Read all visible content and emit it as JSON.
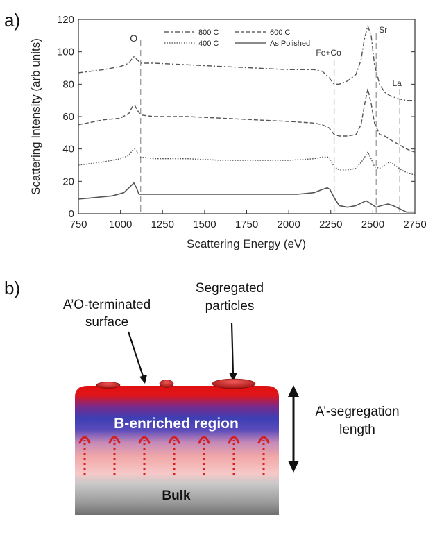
{
  "panel_a_label": "a)",
  "panel_b_label": "b)",
  "chart_data": {
    "type": "line",
    "xlabel": "Scattering Energy (eV)",
    "ylabel": "Scattering Intensity (arb units)",
    "xlim": [
      750,
      2750
    ],
    "ylim": [
      0,
      120
    ],
    "xticks": [
      "750",
      "1000",
      "1250",
      "1500",
      "1750",
      "2000",
      "2250",
      "2500",
      "2750"
    ],
    "yticks": [
      "0",
      "20",
      "40",
      "60",
      "80",
      "100",
      "120"
    ],
    "grid": false,
    "legend_position": "top-center",
    "series": [
      {
        "name": "800 C",
        "style": "dashdot",
        "x": [
          750,
          900,
          1000,
          1050,
          1070,
          1080,
          1100,
          1120,
          1200,
          1400,
          1600,
          1800,
          2000,
          2150,
          2200,
          2240,
          2270,
          2300,
          2350,
          2400,
          2430,
          2450,
          2470,
          2490,
          2510,
          2540,
          2570,
          2600,
          2650,
          2700,
          2750
        ],
        "y": [
          87,
          89,
          91,
          93,
          96,
          97,
          95,
          93,
          93,
          92,
          91,
          90,
          89,
          89,
          88,
          84,
          80,
          80,
          82,
          86,
          95,
          108,
          116,
          110,
          92,
          80,
          75,
          73,
          71,
          70,
          70
        ]
      },
      {
        "name": "600 C",
        "style": "dashed",
        "x": [
          750,
          900,
          1000,
          1050,
          1070,
          1085,
          1100,
          1120,
          1200,
          1400,
          1600,
          1800,
          2000,
          2150,
          2200,
          2240,
          2270,
          2300,
          2350,
          2400,
          2430,
          2450,
          2470,
          2490,
          2510,
          2540,
          2570,
          2600,
          2650,
          2700,
          2750
        ],
        "y": [
          55,
          58,
          59,
          62,
          66,
          67,
          64,
          61,
          60,
          60,
          59,
          58,
          57,
          56,
          55,
          53,
          49,
          48,
          48,
          49,
          55,
          67,
          77,
          68,
          56,
          49,
          48,
          46,
          43,
          40,
          38
        ]
      },
      {
        "name": "400 C",
        "style": "dotted",
        "x": [
          750,
          900,
          1000,
          1050,
          1070,
          1085,
          1100,
          1120,
          1200,
          1400,
          1600,
          1800,
          2000,
          2150,
          2200,
          2240,
          2270,
          2300,
          2350,
          2400,
          2440,
          2470,
          2490,
          2510,
          2540,
          2570,
          2600,
          2630,
          2670,
          2710,
          2750
        ],
        "y": [
          30,
          32,
          34,
          36,
          39,
          40,
          38,
          35,
          34,
          34,
          33,
          33,
          33,
          34,
          35,
          35,
          29,
          27,
          27,
          28,
          33,
          38,
          34,
          29,
          28,
          30,
          32,
          30,
          27,
          25,
          24
        ]
      },
      {
        "name": "As Polished",
        "style": "solid",
        "x": [
          750,
          850,
          950,
          1020,
          1060,
          1080,
          1095,
          1110,
          1150,
          1300,
          1500,
          1700,
          1900,
          2050,
          2150,
          2200,
          2230,
          2245,
          2270,
          2300,
          2350,
          2400,
          2440,
          2460,
          2490,
          2520,
          2550,
          2590,
          2620,
          2660,
          2700,
          2750
        ],
        "y": [
          9,
          10,
          11,
          13,
          17,
          19,
          16,
          12,
          12,
          12,
          12,
          12,
          12,
          12,
          13,
          15,
          16,
          15,
          10,
          5,
          4,
          5,
          7,
          8,
          6,
          4,
          5,
          6,
          5,
          3,
          1,
          1
        ]
      }
    ],
    "annotations": [
      {
        "text": "O",
        "x": 1120
      },
      {
        "text": "Fe+Co",
        "x": 2270
      },
      {
        "text": "Sr",
        "x": 2520
      },
      {
        "text": "La",
        "x": 2660
      }
    ]
  },
  "diagram_b": {
    "label_surface_line1": "A’O-terminated",
    "label_surface_line2": "surface",
    "label_particles_line1": "Segregated",
    "label_particles_line2": "particles",
    "region_label": "B-enriched region",
    "bulk_label": "Bulk",
    "segregation_line1": "A’-segregation",
    "segregation_line2": "length"
  }
}
